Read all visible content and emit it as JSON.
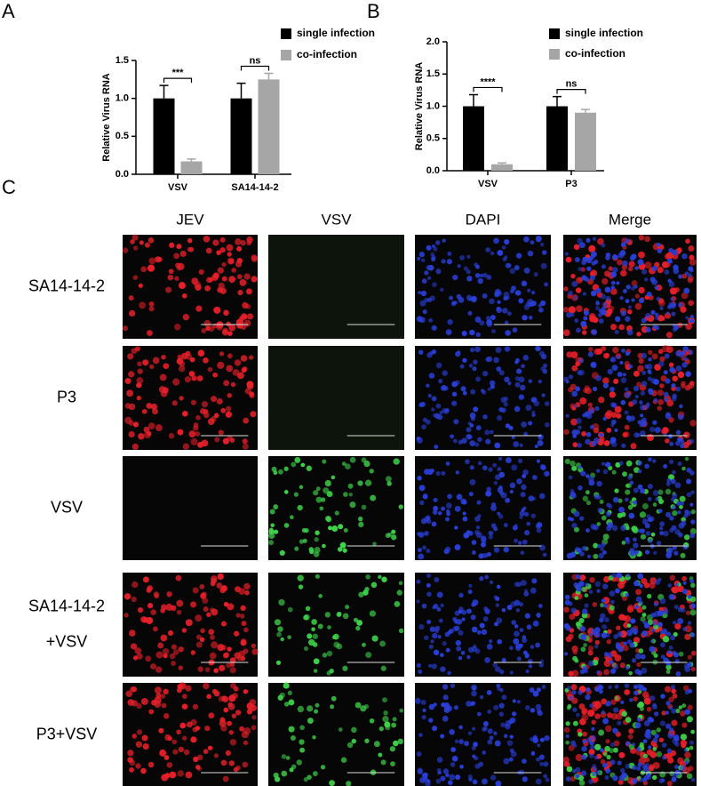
{
  "panel_labels": [
    "A",
    "B",
    "C"
  ],
  "chart_data": [
    {
      "type": "bar",
      "ylabel": "Relative Virus RNA",
      "categories": [
        "VSV",
        "SA14-14-2"
      ],
      "series": [
        {
          "name": "single infection",
          "color": "#000000",
          "values": [
            1.0,
            1.0
          ],
          "errors": [
            0.17,
            0.2
          ]
        },
        {
          "name": "co-infection",
          "color": "#a6a6a6",
          "values": [
            0.17,
            1.25
          ],
          "errors": [
            0.03,
            0.08
          ]
        }
      ],
      "ylim": [
        0,
        1.5
      ],
      "yticks": [
        {
          "value": 0,
          "label": "0.0"
        },
        {
          "value": 0.5,
          "label": "0.5"
        },
        {
          "value": 1,
          "label": "1.0"
        },
        {
          "value": 1.5,
          "label": "1.5"
        }
      ],
      "annotations": [
        "***",
        "ns"
      ]
    },
    {
      "type": "bar",
      "ylabel": "Relative Virus RNA",
      "categories": [
        "VSV",
        "P3"
      ],
      "series": [
        {
          "name": "single infection",
          "color": "#000000",
          "values": [
            1.0,
            1.0
          ],
          "errors": [
            0.18,
            0.15
          ]
        },
        {
          "name": "co-infection",
          "color": "#a6a6a6",
          "values": [
            0.1,
            0.9
          ],
          "errors": [
            0.02,
            0.05
          ]
        }
      ],
      "ylim": [
        0,
        2.0
      ],
      "yticks": [
        {
          "value": 0,
          "label": "0.0"
        },
        {
          "value": 0.5,
          "label": "0.5"
        },
        {
          "value": 1,
          "label": "1.0"
        },
        {
          "value": 1.5,
          "label": "1.5"
        },
        {
          "value": 2,
          "label": "2.0"
        }
      ],
      "annotations": [
        "****",
        "ns"
      ]
    }
  ],
  "micrographs": {
    "columns": [
      "JEV",
      "VSV",
      "DAPI",
      "Merge"
    ],
    "rows": [
      [
        "SA14-14-2"
      ],
      [
        "P3"
      ],
      [
        "VSV"
      ],
      [
        "SA14-14-2",
        "+VSV"
      ],
      [
        "P3+VSV"
      ]
    ]
  }
}
